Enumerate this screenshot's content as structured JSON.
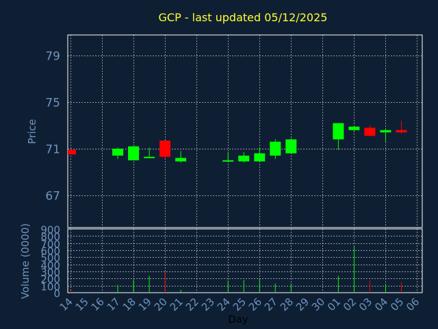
{
  "chart_data": [
    {
      "type": "candlestick",
      "title": "GCP - last updated 05/12/2025",
      "ylabel": "Price",
      "ylim": [
        64.2,
        80.8
      ],
      "yticks": [
        67,
        71,
        75,
        79
      ],
      "grid": true,
      "colors": {
        "up": "#00ff00",
        "down": "#ff0000",
        "wick_up": "#00ff00",
        "wick_down": "#ff0000"
      },
      "points": [
        {
          "x": "14",
          "open": 70.9,
          "high": 70.9,
          "low": 70.5,
          "close": 70.5
        },
        {
          "x": "17",
          "open": 70.4,
          "high": 71.1,
          "low": 70.1,
          "close": 71.0
        },
        {
          "x": "18",
          "open": 70.0,
          "high": 71.2,
          "low": 70.0,
          "close": 71.2
        },
        {
          "x": "19",
          "open": 70.2,
          "high": 71.1,
          "low": 70.2,
          "close": 70.3
        },
        {
          "x": "20",
          "open": 71.7,
          "high": 71.7,
          "low": 70.1,
          "close": 70.3
        },
        {
          "x": "21",
          "open": 69.9,
          "high": 70.8,
          "low": 69.8,
          "close": 70.2
        },
        {
          "x": "24",
          "open": 69.9,
          "high": 70.7,
          "low": 69.9,
          "close": 70.0
        },
        {
          "x": "25",
          "open": 69.9,
          "high": 70.7,
          "low": 69.8,
          "close": 70.4
        },
        {
          "x": "26",
          "open": 69.9,
          "high": 71.1,
          "low": 69.9,
          "close": 70.6
        },
        {
          "x": "27",
          "open": 70.4,
          "high": 71.8,
          "low": 70.1,
          "close": 71.6
        },
        {
          "x": "28",
          "open": 70.6,
          "high": 71.9,
          "low": 70.6,
          "close": 71.8
        },
        {
          "x": "01",
          "open": 71.8,
          "high": 73.2,
          "low": 70.9,
          "close": 73.2
        },
        {
          "x": "02",
          "open": 72.6,
          "high": 73.0,
          "low": 72.5,
          "close": 72.9
        },
        {
          "x": "03",
          "open": 72.8,
          "high": 73.0,
          "low": 72.1,
          "close": 72.1
        },
        {
          "x": "04",
          "open": 72.4,
          "high": 72.7,
          "low": 71.6,
          "close": 72.6
        },
        {
          "x": "05",
          "open": 72.6,
          "high": 73.4,
          "low": 72.3,
          "close": 72.4
        }
      ]
    },
    {
      "type": "bar",
      "ylabel": "Volume (0000)",
      "xlabel": "Day",
      "ylim": [
        0,
        900
      ],
      "yticks": [
        0,
        100,
        200,
        300,
        400,
        500,
        600,
        700,
        800,
        900
      ],
      "categories": [
        "14",
        "15",
        "16",
        "17",
        "18",
        "19",
        "20",
        "21",
        "22",
        "23",
        "24",
        "25",
        "26",
        "27",
        "28",
        "29",
        "30",
        "01",
        "02",
        "03",
        "04",
        "05",
        "06"
      ],
      "series": [
        {
          "values": [
            30,
            0,
            0,
            110,
            180,
            240,
            290,
            40,
            0,
            0,
            170,
            180,
            200,
            130,
            130,
            0,
            0,
            240,
            650,
            170,
            120,
            150,
            0
          ],
          "directions": [
            "down",
            "",
            "",
            "up",
            "up",
            "up",
            "down",
            "up",
            "",
            "",
            "up",
            "up",
            "up",
            "up",
            "up",
            "",
            "",
            "up",
            "up",
            "down",
            "up",
            "down",
            ""
          ]
        }
      ]
    }
  ]
}
